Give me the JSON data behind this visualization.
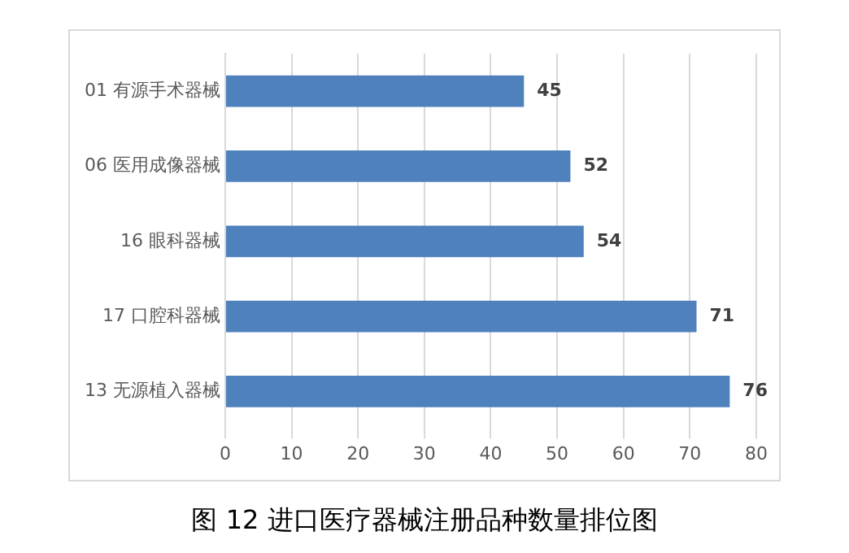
{
  "chart_data": {
    "type": "bar",
    "orientation": "horizontal",
    "title": "图 12  进口医疗器械注册品种数量排位图",
    "categories": [
      "01 有源手术器械",
      "06 医用成像器械",
      "16 眼科器械",
      "17 口腔科器械",
      "13 无源植入器械"
    ],
    "values": [
      45,
      52,
      54,
      71,
      76
    ],
    "color": "#4f81bd",
    "xlim": [
      0,
      80
    ],
    "xticks": [
      0,
      10,
      20,
      30,
      40,
      50,
      60,
      70,
      80
    ],
    "grid": "x",
    "data_labels": true,
    "legend": false
  }
}
